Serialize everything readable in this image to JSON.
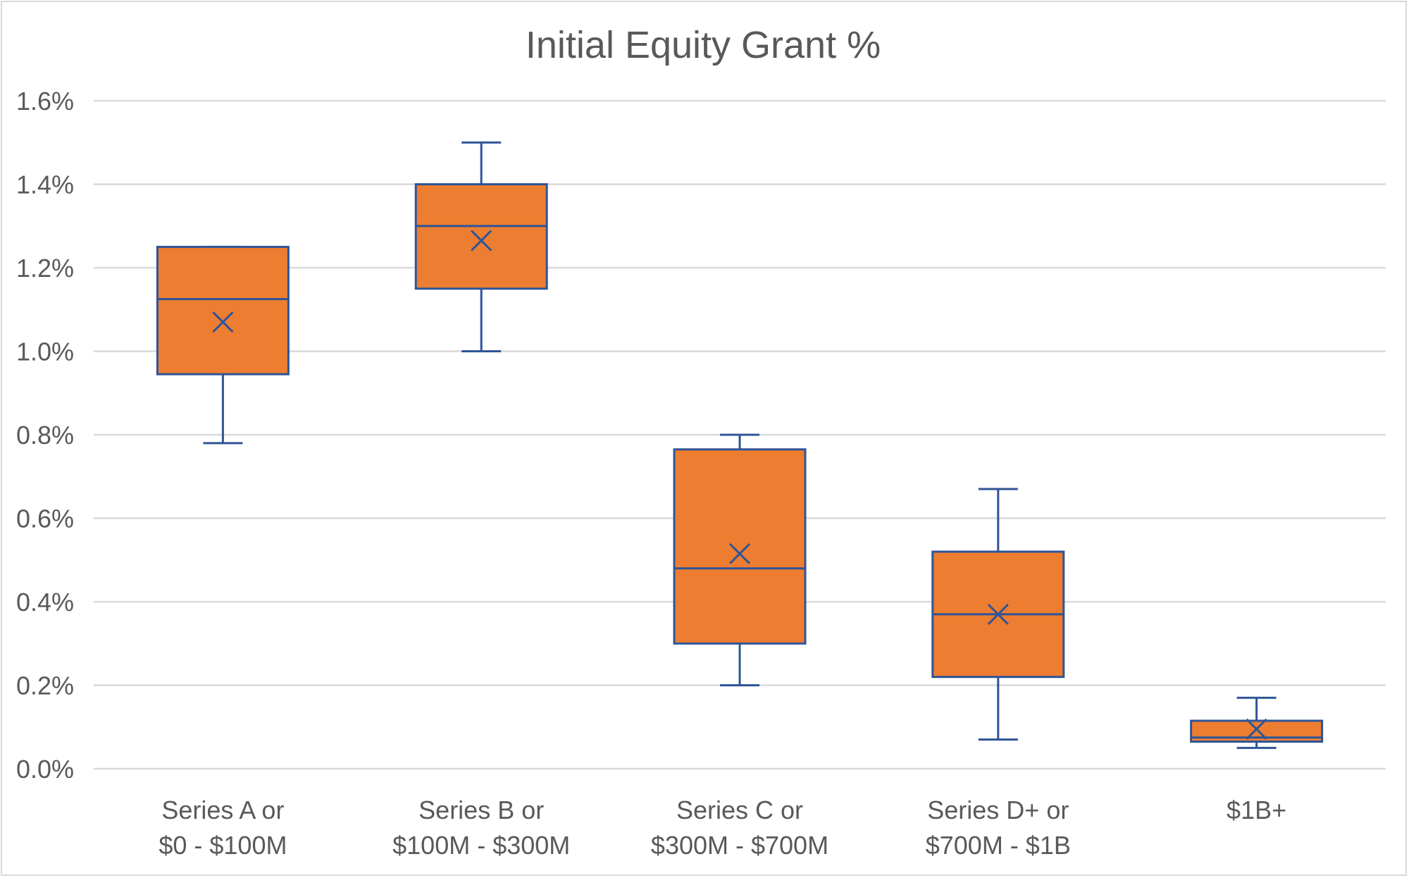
{
  "chart_data": {
    "type": "box",
    "title": "Initial Equity Grant %",
    "xlabel": "",
    "ylabel": "",
    "ylim": [
      0,
      1.6
    ],
    "y_unit": "%",
    "y_ticks": [
      "0.0%",
      "0.2%",
      "0.4%",
      "0.6%",
      "0.8%",
      "1.0%",
      "1.2%",
      "1.4%",
      "1.6%"
    ],
    "grid": true,
    "legend": "none",
    "colors": {
      "box_fill": "#ED7D31",
      "box_stroke": "#2F5597",
      "grid": "#d9d9d9",
      "text": "#595959"
    },
    "categories": [
      {
        "label_line1": "Series A or",
        "label_line2": "$0 - $100M",
        "min": 0.78,
        "q1": 0.945,
        "median": 1.125,
        "q3": 1.25,
        "max": 1.25,
        "mean": 1.07
      },
      {
        "label_line1": "Series B or",
        "label_line2": "$100M - $300M",
        "min": 1.0,
        "q1": 1.15,
        "median": 1.3,
        "q3": 1.4,
        "max": 1.5,
        "mean": 1.265
      },
      {
        "label_line1": "Series C or",
        "label_line2": "$300M - $700M",
        "min": 0.2,
        "q1": 0.3,
        "median": 0.48,
        "q3": 0.765,
        "max": 0.8,
        "mean": 0.515
      },
      {
        "label_line1": "Series D+ or",
        "label_line2": "$700M - $1B",
        "min": 0.07,
        "q1": 0.22,
        "median": 0.37,
        "q3": 0.52,
        "max": 0.67,
        "mean": 0.37
      },
      {
        "label_line1": "$1B+",
        "label_line2": "",
        "min": 0.05,
        "q1": 0.065,
        "median": 0.075,
        "q3": 0.115,
        "max": 0.17,
        "mean": 0.095
      }
    ]
  }
}
